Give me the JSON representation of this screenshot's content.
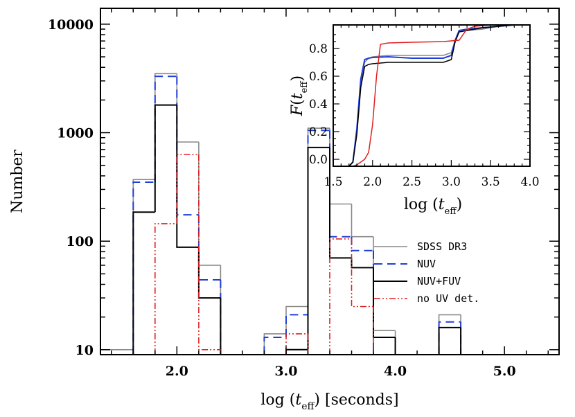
{
  "chart_data": {
    "type": "histogram",
    "title": "",
    "xlabel": "log (t_eff) [seconds]",
    "ylabel": "Number",
    "xlim": [
      1.3,
      5.5
    ],
    "ylim": [
      9,
      14000
    ],
    "yscale": "log",
    "x_ticks": [
      2.0,
      3.0,
      4.0,
      5.0
    ],
    "x_tick_labels": [
      "2.0",
      "3.0",
      "4.0",
      "5.0"
    ],
    "y_ticks": [
      10,
      100,
      1000,
      10000
    ],
    "y_tick_labels": [
      "10",
      "100",
      "1000",
      "10000"
    ],
    "bin_edges": [
      1.2,
      1.4,
      1.6,
      1.8,
      2.0,
      2.2,
      2.4,
      2.6,
      2.8,
      3.0,
      3.2,
      3.4,
      3.6,
      3.8,
      4.0,
      4.2,
      4.4,
      4.6
    ],
    "series": [
      {
        "name": "SDSS DR3",
        "color": "#888888",
        "style": "solid",
        "values": [
          10,
          10,
          370,
          3500,
          820,
          60,
          0,
          0,
          14,
          25,
          1100,
          220,
          110,
          15,
          0,
          0,
          21,
          0
        ]
      },
      {
        "name": "NUV",
        "color": "#1f3fd6",
        "style": "dashed",
        "values": [
          0,
          0,
          350,
          3300,
          175,
          44,
          0,
          0,
          13,
          21,
          1050,
          110,
          82,
          0,
          0,
          0,
          18,
          0
        ]
      },
      {
        "name": "NUV+FUV",
        "color": "#000000",
        "style": "solid",
        "values": [
          0,
          0,
          185,
          1800,
          88,
          30,
          0,
          0,
          0,
          10,
          730,
          70,
          57,
          13,
          0,
          0,
          16,
          0
        ]
      },
      {
        "name": "no UV det.",
        "color": "#e02020",
        "style": "dashdot",
        "values": [
          0,
          0,
          0,
          145,
          630,
          10,
          0,
          0,
          0,
          14,
          0,
          105,
          25,
          0,
          0,
          0,
          0,
          0
        ]
      }
    ],
    "legend": {
      "placement": "center-right",
      "entries": [
        "SDSS DR3",
        "NUV",
        "NUV+FUV",
        "no UV det."
      ]
    },
    "inset": {
      "type": "line",
      "xlabel": "log (t_eff)",
      "ylabel": "F(t_eff)",
      "xlim": [
        1.5,
        4.0
      ],
      "ylim": [
        -0.05,
        0.97
      ],
      "x_ticks": [
        1.5,
        2.0,
        2.5,
        3.0,
        3.5,
        4.0
      ],
      "x_tick_labels": [
        "1.5",
        "2.0",
        "2.5",
        "3.0",
        "3.5",
        "4.0"
      ],
      "y_ticks": [
        0.0,
        0.2,
        0.4,
        0.6,
        0.8
      ],
      "y_tick_labels": [
        "0.0",
        "0.2",
        "0.4",
        "0.6",
        "0.8"
      ],
      "series": [
        {
          "name": "SDSS DR3",
          "color": "#888888",
          "x": [
            1.5,
            1.7,
            1.75,
            1.8,
            1.85,
            1.9,
            1.95,
            2.0,
            2.2,
            2.5,
            2.9,
            3.0,
            3.05,
            3.1,
            3.2,
            3.4,
            3.6,
            3.8,
            4.0
          ],
          "y": [
            -0.05,
            -0.05,
            -0.02,
            0.2,
            0.55,
            0.7,
            0.73,
            0.74,
            0.75,
            0.75,
            0.75,
            0.77,
            0.86,
            0.92,
            0.93,
            0.94,
            0.96,
            0.97,
            0.97
          ]
        },
        {
          "name": "NUV",
          "color": "#1f3fd6",
          "x": [
            1.5,
            1.7,
            1.75,
            1.8,
            1.85,
            1.9,
            1.95,
            2.0,
            2.2,
            2.5,
            2.9,
            3.0,
            3.05,
            3.1,
            3.2,
            3.4,
            3.6,
            3.8,
            4.0
          ],
          "y": [
            -0.05,
            -0.05,
            -0.02,
            0.22,
            0.58,
            0.72,
            0.73,
            0.735,
            0.74,
            0.73,
            0.73,
            0.75,
            0.86,
            0.93,
            0.94,
            0.95,
            0.96,
            0.97,
            0.97
          ]
        },
        {
          "name": "NUV+FUV",
          "color": "#000000",
          "x": [
            1.5,
            1.7,
            1.75,
            1.8,
            1.85,
            1.9,
            1.95,
            2.0,
            2.2,
            2.5,
            2.9,
            3.0,
            3.05,
            3.1,
            3.2,
            3.4,
            3.6,
            3.8,
            4.0
          ],
          "y": [
            -0.05,
            -0.05,
            -0.02,
            0.18,
            0.52,
            0.67,
            0.685,
            0.69,
            0.7,
            0.7,
            0.7,
            0.72,
            0.85,
            0.92,
            0.93,
            0.95,
            0.96,
            0.97,
            0.97
          ]
        },
        {
          "name": "no UV det.",
          "color": "#e02020",
          "x": [
            1.5,
            1.75,
            1.8,
            1.9,
            1.95,
            2.0,
            2.05,
            2.1,
            2.2,
            2.5,
            2.9,
            3.1,
            3.15,
            3.2,
            3.3,
            3.5,
            3.8,
            4.0
          ],
          "y": [
            -0.05,
            -0.05,
            -0.04,
            0.0,
            0.05,
            0.25,
            0.6,
            0.83,
            0.84,
            0.845,
            0.85,
            0.86,
            0.9,
            0.94,
            0.96,
            0.97,
            0.97,
            0.97
          ]
        }
      ]
    }
  }
}
